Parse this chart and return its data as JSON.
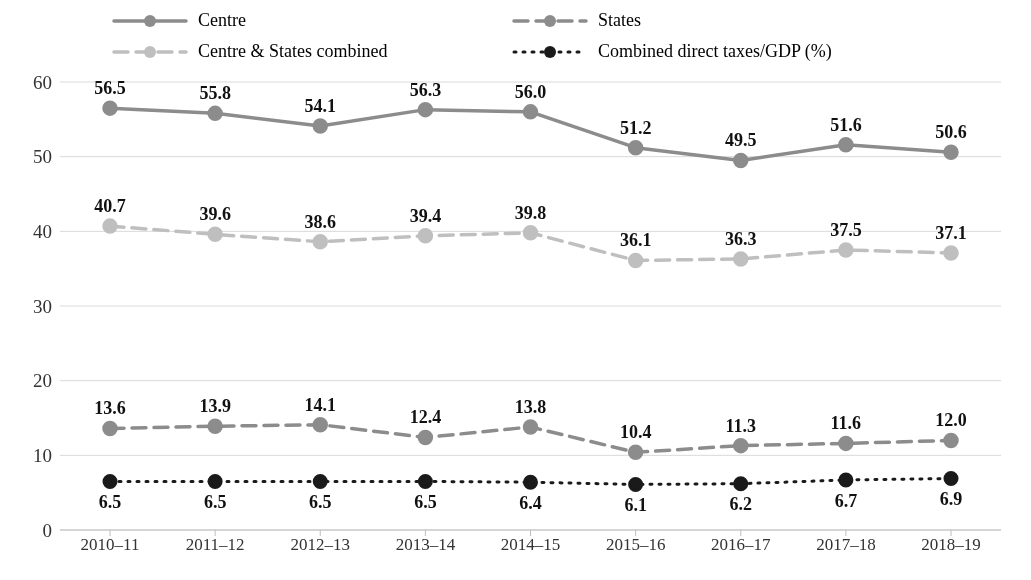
{
  "chart_data": {
    "type": "line",
    "categories": [
      "2010–11",
      "2011–12",
      "2012–13",
      "2013–14",
      "2014–15",
      "2015–16",
      "2016–17",
      "2017–18",
      "2018–19"
    ],
    "series": [
      {
        "name": "Centre",
        "color": "#8c8c8c",
        "line_style": "solid",
        "values": [
          56.5,
          55.8,
          54.1,
          56.3,
          56.0,
          51.2,
          49.5,
          51.6,
          50.6
        ],
        "value_labels": [
          "56.5",
          "55.8",
          "54.1",
          "56.3",
          "56.0",
          "51.2",
          "49.5",
          "51.6",
          "50.6"
        ]
      },
      {
        "name": "States",
        "color": "#8c8c8c",
        "line_style": "dashed",
        "values": [
          13.6,
          13.9,
          14.1,
          12.4,
          13.8,
          10.4,
          11.3,
          11.6,
          12.0
        ],
        "value_labels": [
          "13.6",
          "13.9",
          "14.1",
          "12.4",
          "13.8",
          "10.4",
          "11.3",
          "11.6",
          "12.0"
        ]
      },
      {
        "name": "Centre & States combined",
        "color": "#bfbfbf",
        "line_style": "dashed",
        "values": [
          40.7,
          39.6,
          38.6,
          39.4,
          39.8,
          36.1,
          36.3,
          37.5,
          37.1
        ],
        "value_labels": [
          "40.7",
          "39.6",
          "38.6",
          "39.4",
          "39.8",
          "36.1",
          "36.3",
          "37.5",
          "37.1"
        ]
      },
      {
        "name": "Combined direct taxes/GDP (%)",
        "color": "#1a1a1a",
        "line_style": "dotted",
        "values": [
          6.5,
          6.5,
          6.5,
          6.5,
          6.4,
          6.1,
          6.2,
          6.7,
          6.9
        ],
        "value_labels": [
          "6.5",
          "6.5",
          "6.5",
          "6.5",
          "6.4",
          "6.1",
          "6.2",
          "6.7",
          "6.9"
        ]
      }
    ],
    "ylim": [
      0,
      60
    ],
    "yticks": [
      0,
      10,
      20,
      30,
      40,
      50,
      60
    ],
    "grid": "y",
    "legend": "top",
    "marker": "circle"
  }
}
